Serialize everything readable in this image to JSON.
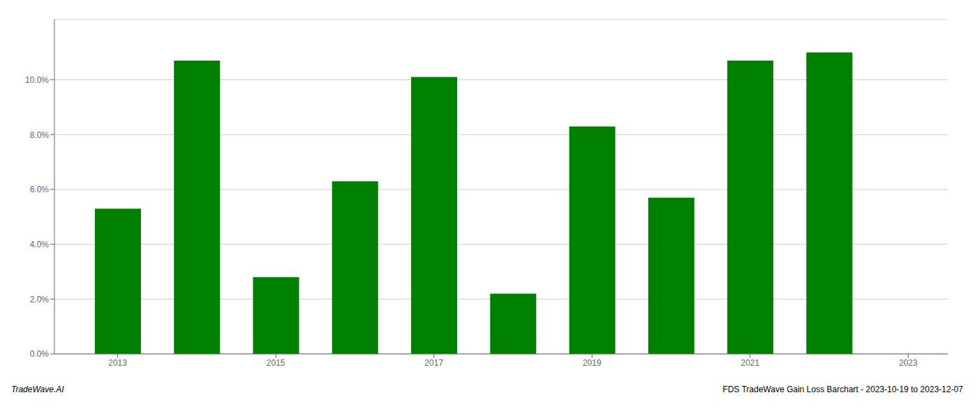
{
  "chart_data": {
    "type": "bar",
    "x": [
      2013,
      2014,
      2015,
      2016,
      2017,
      2018,
      2019,
      2020,
      2021,
      2022
    ],
    "values": [
      0.053,
      0.107,
      0.028,
      0.063,
      0.101,
      0.022,
      0.083,
      0.057,
      0.107,
      0.11
    ],
    "color": "#008000",
    "xlim": [
      2012.2,
      2023.5
    ],
    "xticks": [
      2013,
      2015,
      2017,
      2019,
      2021,
      2023
    ],
    "ylim": [
      0,
      0.122
    ],
    "yticks": [
      {
        "value": 0.0,
        "label": "0.0%"
      },
      {
        "value": 0.02,
        "label": "2.0%"
      },
      {
        "value": 0.04,
        "label": "4.0%"
      },
      {
        "value": 0.06,
        "label": "6.0%"
      },
      {
        "value": 0.08,
        "label": "8.0%"
      },
      {
        "value": 0.1,
        "label": "10.0%"
      }
    ],
    "grid": true,
    "annotations": [
      "TradeWave.AI",
      "FDS TradeWave Gain Loss Barchart - 2023-10-19 to 2023-12-07"
    ]
  }
}
